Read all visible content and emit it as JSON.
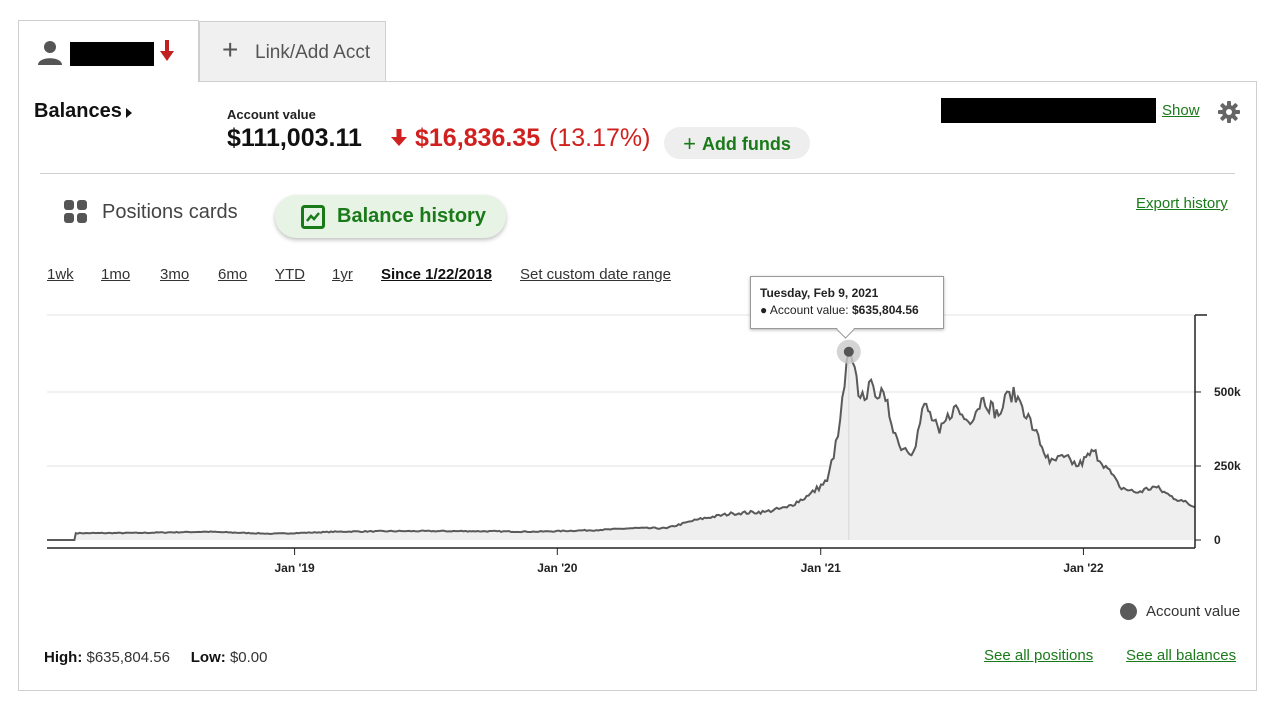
{
  "tabs": {
    "link_add_label": "Link/Add Acct"
  },
  "header": {
    "balances_label": "Balances",
    "account_value_label": "Account value",
    "account_value": "$111,003.11",
    "change_amount": "$16,836.35",
    "change_percent": "(13.17%)",
    "add_funds_label": "Add funds",
    "show_label": "Show"
  },
  "view": {
    "positions_cards_label": "Positions cards",
    "balance_history_label": "Balance history",
    "export_label": "Export history"
  },
  "ranges": [
    {
      "label": "1wk",
      "active": false
    },
    {
      "label": "1mo",
      "active": false
    },
    {
      "label": "3mo",
      "active": false
    },
    {
      "label": "6mo",
      "active": false
    },
    {
      "label": "YTD",
      "active": false
    },
    {
      "label": "1yr",
      "active": false
    },
    {
      "label": "Since 1/22/2018",
      "active": true
    },
    {
      "label": "Set custom date range",
      "active": false
    }
  ],
  "tooltip": {
    "date": "Tuesday, Feb 9, 2021",
    "series_label": "Account value:",
    "value": "$635,804.56"
  },
  "legend_label": "Account value",
  "footer": {
    "high_label": "High:",
    "high_value": "$635,804.56",
    "low_label": "Low:",
    "low_value": "$0.00",
    "see_positions": "See all positions",
    "see_balances": "See all balances"
  },
  "colors": {
    "accent_green": "#1a7a1a",
    "loss_red": "#d12020",
    "line": "#5a5a5a",
    "area_fill": "#efefef"
  },
  "chart_data": {
    "type": "area",
    "series": [
      {
        "name": "Account value",
        "x": [
          "2018-01-22",
          "2018-03-01",
          "2018-03-03",
          "2018-06-01",
          "2018-09-01",
          "2018-12-01",
          "2019-03-01",
          "2019-06-01",
          "2019-09-01",
          "2019-12-01",
          "2020-03-01",
          "2020-04-15",
          "2020-06-01",
          "2020-07-15",
          "2020-09-01",
          "2020-10-15",
          "2020-11-15",
          "2020-12-15",
          "2021-01-10",
          "2021-01-25",
          "2021-02-09",
          "2021-02-25",
          "2021-03-15",
          "2021-04-01",
          "2021-04-20",
          "2021-05-10",
          "2021-05-25",
          "2021-06-15",
          "2021-07-05",
          "2021-07-25",
          "2021-08-15",
          "2021-09-05",
          "2021-09-20",
          "2021-10-05",
          "2021-10-25",
          "2021-11-15",
          "2021-12-05",
          "2021-12-25",
          "2022-01-15",
          "2022-02-01",
          "2022-02-20",
          "2022-03-15",
          "2022-04-10",
          "2022-05-01",
          "2022-05-20",
          "2022-06-05"
        ],
        "values": [
          0,
          0,
          23000,
          24000,
          28000,
          21000,
          28000,
          30000,
          30000,
          28000,
          34000,
          40000,
          40000,
          70000,
          90000,
          95000,
          110000,
          150000,
          200000,
          350000,
          635804.56,
          480000,
          520000,
          470000,
          320000,
          300000,
          460000,
          360000,
          450000,
          400000,
          480000,
          420000,
          500000,
          470000,
          370000,
          260000,
          280000,
          250000,
          300000,
          250000,
          180000,
          160000,
          180000,
          150000,
          130000,
          111003.11
        ]
      }
    ],
    "x_ticks": [
      "Jan '19",
      "Jan '20",
      "Jan '21",
      "Jan '22"
    ],
    "y_ticks": [
      "0",
      "250k",
      "500k"
    ],
    "ylim": [
      0,
      760000
    ],
    "highlight": {
      "date": "2021-02-09",
      "value": 635804.56
    }
  }
}
